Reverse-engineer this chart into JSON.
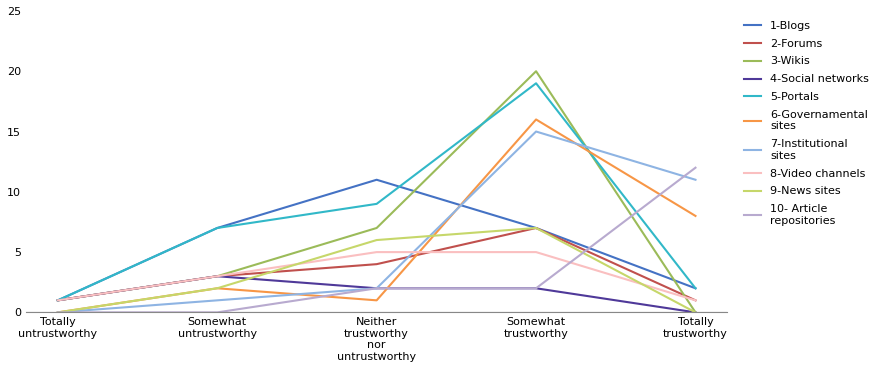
{
  "categories": [
    "Totally\nuntrustworthy",
    "Somewhat\nuntrustworthy",
    "Neither\ntrustworthy\nnor\nuntrustworthy",
    "Somewhat\ntrustworthy",
    "Totally\ntrustworthy"
  ],
  "series": [
    {
      "label": "1-Blogs",
      "color": "#4472C4",
      "values": [
        1,
        7,
        11,
        7,
        2
      ]
    },
    {
      "label": "2-Forums",
      "color": "#C0504D",
      "values": [
        1,
        3,
        4,
        7,
        1
      ]
    },
    {
      "label": "3-Wikis",
      "color": "#9BBB59",
      "values": [
        1,
        3,
        7,
        20,
        0
      ]
    },
    {
      "label": "4-Social networks",
      "color": "#4F3999",
      "values": [
        1,
        3,
        2,
        2,
        0
      ]
    },
    {
      "label": "5-Portals",
      "color": "#31B8C8",
      "values": [
        1,
        7,
        9,
        19,
        2
      ]
    },
    {
      "label": "6-Governamental\nsites",
      "color": "#F79646",
      "values": [
        0,
        2,
        1,
        16,
        8
      ]
    },
    {
      "label": "7-Institutional\nsites",
      "color": "#8EB4E3",
      "values": [
        0,
        1,
        2,
        15,
        11
      ]
    },
    {
      "label": "8-Video channels",
      "color": "#FABFC0",
      "values": [
        1,
        3,
        5,
        5,
        1
      ]
    },
    {
      "label": "9-News sites",
      "color": "#C6D76A",
      "values": [
        0,
        2,
        6,
        7,
        0
      ]
    },
    {
      "label": "10- Article\nrepositories",
      "color": "#B8AACF",
      "values": [
        0,
        0,
        2,
        2,
        12
      ]
    }
  ],
  "ylim": [
    0,
    25
  ],
  "yticks": [
    0,
    5,
    10,
    15,
    20,
    25
  ],
  "background_color": "#ffffff",
  "linewidth": 1.5,
  "legend_fontsize": 8,
  "tick_fontsize": 8
}
